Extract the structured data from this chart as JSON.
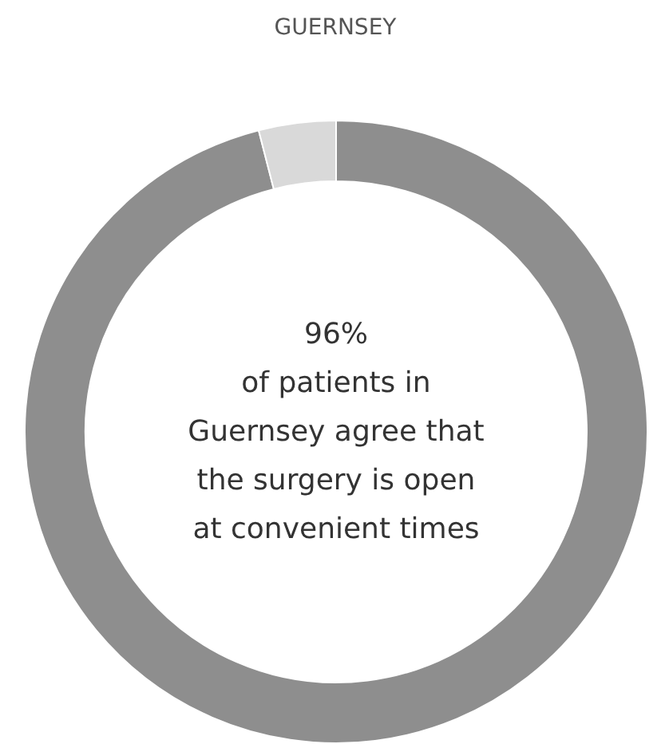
{
  "chart_data": {
    "type": "donut",
    "title": "GUERNSEY",
    "categories": [
      null,
      null
    ],
    "values": [
      96,
      4
    ],
    "annotations": [
      "96%\nof patients in\nGuernsey agree that\nthe surgery is open\nat convenient times"
    ],
    "colors": [
      "#8e8e8e",
      "#d9d9d9"
    ]
  }
}
